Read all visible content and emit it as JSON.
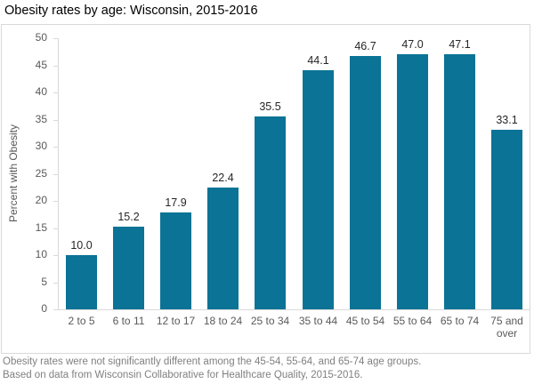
{
  "title": "Obesity rates by age: Wisconsin, 2015-2016",
  "chart_data": {
    "type": "bar",
    "title": "Obesity rates by age: Wisconsin, 2015-2016",
    "categories": [
      "2 to 5",
      "6 to 11",
      "12 to 17",
      "18 to 24",
      "25 to 34",
      "35 to 44",
      "45 to 54",
      "55 to 64",
      "65 to 74",
      "75 and over"
    ],
    "values": [
      10.0,
      15.2,
      17.9,
      22.4,
      35.5,
      44.1,
      46.7,
      47.0,
      47.1,
      33.1
    ],
    "value_labels": [
      "10.0",
      "15.2",
      "17.9",
      "22.4",
      "35.5",
      "44.1",
      "46.7",
      "47.0",
      "47.1",
      "33.1"
    ],
    "xlabel": "",
    "ylabel": "Percent with Obesity",
    "ylim": [
      0,
      50
    ],
    "yticks": [
      0,
      5,
      10,
      15,
      20,
      25,
      30,
      35,
      40,
      45,
      50
    ],
    "grid": false,
    "legend": "none",
    "bar_color": "#0a7396"
  },
  "colors": {
    "bar": "#0a7396",
    "axis_line": "#d9d9d9",
    "tick_label": "#595959",
    "data_label": "#262626",
    "note_text": "#808080",
    "title_text": "#000000",
    "box_border": "#d9d9d9"
  },
  "footnotes": {
    "line1": "Obesity rates were not significantly different among the 45-54, 55-64, and 65-74 age groups.",
    "line2": "Based on data from Wisconsin Collaborative for Healthcare Quality, 2015-2016."
  }
}
